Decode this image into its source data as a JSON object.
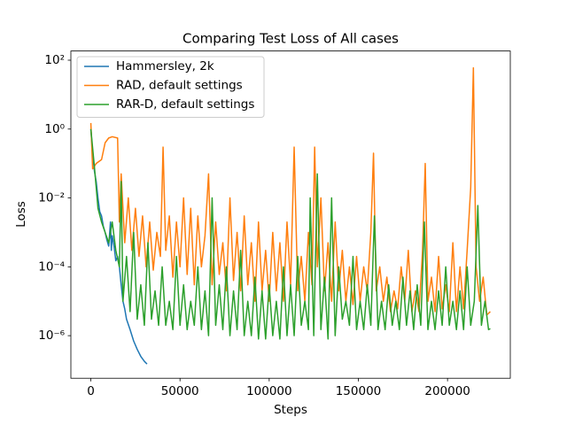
{
  "chart_data": {
    "type": "line",
    "title": "Comparing Test Loss of All cases",
    "x_label": "Steps",
    "y_label": "Loss",
    "log_y": true,
    "grid": false,
    "legend": "upper left",
    "xlim": [
      -11200,
      235200
    ],
    "ylim": [
      5.8e-08,
      185
    ],
    "xticks": [
      0,
      50000,
      100000,
      150000,
      200000
    ],
    "yticks": [
      {
        "value": 1e-06,
        "label": "10⁻⁶"
      },
      {
        "value": 0.0001,
        "label": "10⁻⁴"
      },
      {
        "value": 0.01,
        "label": "10⁻²"
      },
      {
        "value": 1,
        "label": "10⁰"
      },
      {
        "value": 100,
        "label": "10²"
      }
    ],
    "series": [
      {
        "name": "Hammersley, 2k",
        "color": "#1f77b4",
        "x": [
          0,
          1000,
          2000,
          3000,
          4000,
          5000,
          6000,
          7000,
          8000,
          9000,
          10000,
          11000,
          11500,
          12000,
          13000,
          14000,
          15000,
          16000,
          17000,
          18000,
          19000,
          20000,
          22000,
          24000,
          26000,
          28000,
          30000,
          31500
        ],
        "values": [
          1,
          0.2,
          0.06,
          0.03,
          0.01,
          0.004,
          0.003,
          0.0015,
          0.001,
          0.0006,
          0.0004,
          0.002,
          0.0003,
          0.0008,
          0.0004,
          0.00015,
          0.0002,
          0.0001,
          3e-05,
          1e-05,
          6e-06,
          3e-06,
          1.5e-06,
          7e-07,
          4e-07,
          2.5e-07,
          1.8e-07,
          1.5e-07
        ]
      },
      {
        "name": "RAD, default settings",
        "color": "#ff7f0e",
        "x": [
          0,
          1000,
          3000,
          6000,
          8000,
          10000,
          12000,
          15000,
          16000,
          17000,
          19000,
          21000,
          23000,
          25000,
          27000,
          29000,
          31000,
          33000,
          35000,
          37000,
          39000,
          40500,
          42000,
          44000,
          46000,
          48000,
          50000,
          52000,
          54000,
          56000,
          58000,
          60000,
          62000,
          64000,
          66000,
          68000,
          70000,
          72000,
          74000,
          76000,
          78000,
          80000,
          82000,
          84000,
          86000,
          88000,
          90000,
          92000,
          94000,
          96000,
          98000,
          100000,
          102000,
          104000,
          106000,
          108000,
          110000,
          112000,
          114000,
          116000,
          118000,
          120000,
          122000,
          124000,
          125500,
          127000,
          129000,
          131000,
          133000,
          135000,
          137000,
          139000,
          141000,
          143000,
          145000,
          147000,
          149000,
          151000,
          153000,
          155000,
          157000,
          158500,
          160000,
          162000,
          164000,
          166000,
          168000,
          170000,
          172000,
          174000,
          176000,
          178000,
          180000,
          182000,
          184000,
          186000,
          187500,
          189000,
          191000,
          193000,
          195000,
          197000,
          199000,
          201000,
          203000,
          205000,
          207000,
          209000,
          211000,
          213000,
          214500,
          216000,
          218000,
          220000,
          222000,
          224000
        ],
        "values": [
          1.5,
          0.07,
          0.1,
          0.13,
          0.4,
          0.55,
          0.6,
          0.55,
          0.002,
          0.05,
          0.0005,
          0.01,
          0.0003,
          0.005,
          0.0002,
          0.003,
          0.0001,
          0.002,
          8e-05,
          0.001,
          0.0002,
          0.3,
          0.0003,
          0.003,
          5e-05,
          0.002,
          0.0001,
          0.01,
          6e-05,
          0.005,
          3e-05,
          0.003,
          0.0001,
          0.0008,
          0.05,
          3e-05,
          0.002,
          6e-05,
          0.0005,
          2e-05,
          0.01,
          4e-05,
          0.001,
          2e-05,
          0.003,
          3e-05,
          0.0005,
          1e-05,
          0.002,
          2e-05,
          0.0003,
          1e-05,
          0.001,
          2e-05,
          0.0005,
          1e-05,
          0.002,
          3e-05,
          0.3,
          2e-05,
          0.0002,
          1e-05,
          0.001,
          3e-05,
          0.3,
          0.0001,
          0.01,
          2e-05,
          0.0005,
          1e-05,
          0.002,
          2e-05,
          0.0003,
          1e-05,
          0.0001,
          8e-06,
          0.0002,
          1e-05,
          0.0001,
          2e-05,
          0.001,
          0.2,
          2e-05,
          0.0001,
          1e-05,
          5e-05,
          5e-06,
          2e-05,
          6e-06,
          0.0001,
          1e-05,
          0.0003,
          5e-06,
          2e-05,
          5e-06,
          0.0003,
          0.1,
          1e-05,
          5e-05,
          5e-06,
          0.0002,
          6e-06,
          3e-05,
          5e-06,
          0.0005,
          5e-06,
          0.0001,
          6e-06,
          0.0003,
          0.02,
          60,
          0.0001,
          1e-05,
          5e-05,
          4e-06,
          5e-06
        ]
      },
      {
        "name": "RAR-D, default settings",
        "color": "#2ca02c",
        "x": [
          0,
          2000,
          4000,
          6000,
          8000,
          10000,
          12000,
          14000,
          16000,
          17000,
          18000,
          20000,
          22000,
          24000,
          26000,
          28000,
          30000,
          32000,
          34000,
          36000,
          38000,
          40000,
          42000,
          44000,
          46000,
          48000,
          50000,
          52000,
          54000,
          56000,
          58000,
          60000,
          62000,
          64000,
          66000,
          68000,
          70000,
          72000,
          74000,
          76000,
          78000,
          80000,
          82000,
          84000,
          86000,
          88000,
          90000,
          92000,
          94000,
          96000,
          98000,
          100000,
          102000,
          104000,
          106000,
          108000,
          110000,
          112000,
          114000,
          116000,
          118000,
          120000,
          122000,
          123000,
          125000,
          127000,
          129000,
          131000,
          133000,
          135000,
          137000,
          139000,
          141000,
          143000,
          145000,
          147000,
          149000,
          151000,
          153000,
          155000,
          157000,
          159000,
          161000,
          163000,
          165000,
          167000,
          169000,
          171000,
          173000,
          175000,
          177000,
          179000,
          181000,
          183000,
          185000,
          187000,
          189000,
          191000,
          193000,
          195000,
          197000,
          199000,
          201000,
          203000,
          205000,
          207000,
          209000,
          211000,
          213000,
          215000,
          217000,
          219000,
          221000,
          223000,
          224000
        ],
        "values": [
          1,
          0.08,
          0.005,
          0.002,
          0.001,
          0.0005,
          0.002,
          0.0003,
          0.0001,
          0.03,
          1e-05,
          0.0002,
          5e-06,
          0.001,
          3e-06,
          3e-05,
          2e-06,
          0.0005,
          3e-06,
          2e-05,
          2e-06,
          0.0001,
          2e-06,
          1e-05,
          1.5e-06,
          0.0002,
          2e-06,
          3e-05,
          1.5e-06,
          1e-05,
          2e-06,
          0.0001,
          1.5e-06,
          2e-05,
          1e-06,
          0.01,
          2e-06,
          3e-05,
          1.5e-06,
          0.0001,
          1e-06,
          2e-05,
          1.5e-06,
          0.0003,
          1e-06,
          1e-05,
          1e-06,
          5e-05,
          8e-07,
          2e-05,
          8e-07,
          3e-05,
          1e-06,
          1e-05,
          8e-07,
          0.0001,
          1e-06,
          3e-05,
          1e-06,
          0.0002,
          2e-06,
          1e-05,
          1.5e-06,
          0.01,
          1e-06,
          0.05,
          1.5e-06,
          5e-05,
          8e-07,
          0.01,
          1e-06,
          0.0001,
          3e-06,
          1e-05,
          2e-06,
          0.0002,
          1.5e-06,
          1e-05,
          1.5e-06,
          3e-05,
          2e-06,
          0.003,
          1.5e-06,
          1e-05,
          1.5e-06,
          3e-05,
          2e-06,
          1e-05,
          1.5e-06,
          5e-05,
          2e-06,
          2e-05,
          1.5e-06,
          3e-05,
          2e-06,
          0.002,
          1.5e-06,
          1e-05,
          1.5e-06,
          2e-05,
          2e-06,
          0.0001,
          2e-06,
          1e-05,
          1.5e-06,
          2e-05,
          1.5e-06,
          0.0001,
          2e-06,
          1e-05,
          0.006,
          2e-06,
          1e-05,
          1.5e-06,
          1.6e-06
        ]
      }
    ]
  }
}
